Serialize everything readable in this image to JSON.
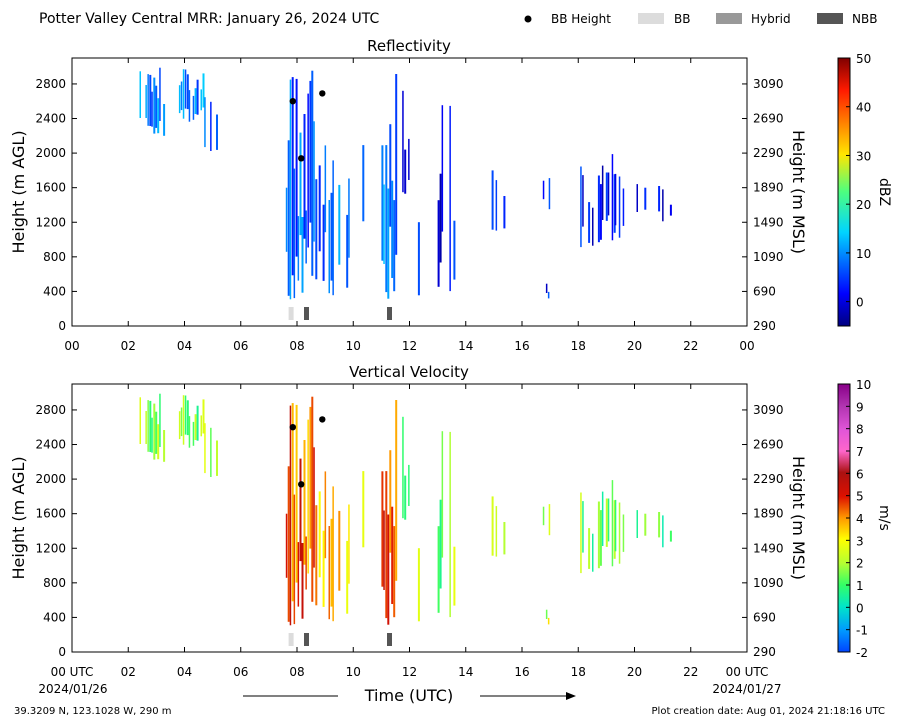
{
  "header": {
    "title": "Potter Valley Central MRR:  January 26, 2024 UTC",
    "legend": [
      {
        "label": "BB Height",
        "kind": "dot",
        "color": "#000000"
      },
      {
        "label": "BB",
        "kind": "rect",
        "color": "#dcdcdc"
      },
      {
        "label": "Hybrid",
        "kind": "rect",
        "color": "#999999"
      },
      {
        "label": "NBB",
        "kind": "rect",
        "color": "#555555"
      }
    ]
  },
  "chart_data": [
    {
      "type": "heatmap",
      "title": "Reflectivity",
      "ylabel": "Height (m AGL)",
      "y2label": "Height (m MSL)",
      "xlim": [
        0,
        24
      ],
      "ylim": [
        0,
        3100
      ],
      "xticks": [
        "00",
        "02",
        "04",
        "06",
        "08",
        "10",
        "12",
        "14",
        "16",
        "18",
        "20",
        "22",
        "00"
      ],
      "yticks": [
        "0",
        "400",
        "800",
        "1200",
        "1600",
        "2000",
        "2400",
        "2800"
      ],
      "y2ticks": [
        "290",
        "690",
        "1090",
        "1490",
        "1890",
        "2290",
        "2690",
        "3090"
      ],
      "colorbar": {
        "label": "dBZ",
        "min": -5,
        "max": 50,
        "ticks": [
          "0",
          "10",
          "20",
          "30",
          "40",
          "50"
        ],
        "colormap": "jet"
      },
      "bb_height": [
        {
          "x": 7.85,
          "y": 2600
        },
        {
          "x": 8.15,
          "y": 1940
        },
        {
          "x": 8.9,
          "y": 2690
        }
      ],
      "bb_type": [
        {
          "start": 7.7,
          "end": 7.95,
          "type": "BB"
        },
        {
          "start": 8.25,
          "end": 8.5,
          "type": "NBB"
        },
        {
          "start": 11.2,
          "end": 11.45,
          "type": "NBB"
        }
      ]
    },
    {
      "type": "heatmap",
      "title": "Vertical Velocity",
      "ylabel": "Height (m AGL)",
      "y2label": "Height (m MSL)",
      "xlabel": "Time (UTC)",
      "xlim": [
        0,
        24
      ],
      "ylim": [
        0,
        3100
      ],
      "xticks": [
        "00 UTC",
        "02",
        "04",
        "06",
        "08",
        "10",
        "12",
        "14",
        "16",
        "18",
        "20",
        "22",
        "00 UTC"
      ],
      "yticks": [
        "0",
        "400",
        "800",
        "1200",
        "1600",
        "2000",
        "2400",
        "2800"
      ],
      "y2ticks": [
        "290",
        "690",
        "1090",
        "1490",
        "1890",
        "2290",
        "2690",
        "3090"
      ],
      "colorbar": {
        "label": "m/s",
        "min": -2,
        "max": 10,
        "ticks": [
          "-2",
          "-1",
          "0",
          "1",
          "2",
          "3",
          "4",
          "5",
          "6",
          "7",
          "8",
          "9",
          "10"
        ],
        "colormap": "velocity"
      },
      "bb_height": [
        {
          "x": 7.85,
          "y": 2600
        },
        {
          "x": 8.15,
          "y": 1940
        },
        {
          "x": 8.9,
          "y": 2690
        }
      ],
      "bb_type": [
        {
          "start": 7.7,
          "end": 7.95,
          "type": "BB"
        },
        {
          "start": 8.25,
          "end": 8.5,
          "type": "NBB"
        },
        {
          "start": 11.2,
          "end": 11.45,
          "type": "NBB"
        }
      ]
    }
  ],
  "footer": {
    "start_date": "2024/01/26",
    "end_date": "2024/01/27",
    "location": "39.3209 N, 123.1028 W, 290 m",
    "creation": "Plot creation date: Aug 01, 2024 21:18:16 UTC"
  },
  "colors": {
    "bb": "#dcdcdc",
    "hybrid": "#999999",
    "nbb": "#555555",
    "bb_marker": "#000000"
  }
}
